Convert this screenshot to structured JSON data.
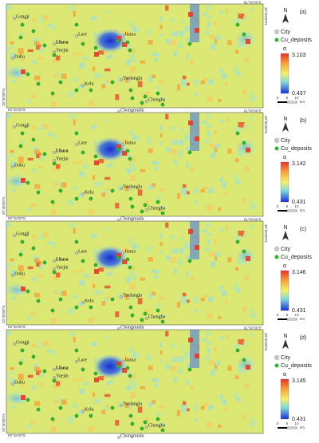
{
  "figure": {
    "legend": {
      "north": "N",
      "city": "City",
      "deposits": "Cu_deposits",
      "alpha": "α",
      "scale_ticks": [
        "0",
        "5",
        "10"
      ],
      "scale_unit": "km"
    },
    "coordinates": {
      "top": "91°00'00\"E",
      "right": "30°00'00\"N",
      "left": "29°40'00\"N",
      "bottom": "90°45'00\"E"
    },
    "places": [
      "Gongji",
      "Lare",
      "Lhasa",
      "Yuejin",
      "Dahu",
      "Jiama",
      "Kelu",
      "Tuolangla",
      "Chengba",
      "Chongmuda"
    ],
    "panels": [
      {
        "label": "(a)",
        "max": 3.103,
        "min": 0.437
      },
      {
        "label": "(b)",
        "max": 3.142,
        "min": 0.431
      },
      {
        "label": "(c)",
        "max": 3.146,
        "min": 0.431
      },
      {
        "label": "(d)",
        "max": 3.145,
        "min": 0.431
      }
    ]
  }
}
